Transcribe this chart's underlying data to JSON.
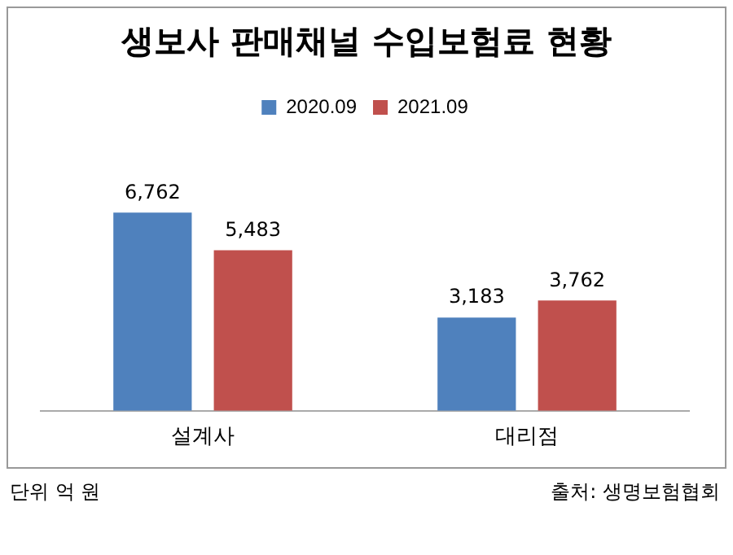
{
  "chart_data": {
    "type": "bar",
    "title": "생보사 판매채널 수입보험료 현황",
    "categories": [
      "설계사",
      "대리점"
    ],
    "series": [
      {
        "name": "2020.09",
        "color": "#4f81bd",
        "values": [
          6762,
          3183
        ],
        "value_labels": [
          "6,762",
          "3,183"
        ]
      },
      {
        "name": "2021.09",
        "color": "#c0504d",
        "values": [
          5483,
          3762
        ],
        "value_labels": [
          "5,483",
          "3,762"
        ]
      }
    ],
    "legend": "top",
    "annotations": [
      "단위 억 원",
      "출처: 생명보험협회"
    ]
  }
}
